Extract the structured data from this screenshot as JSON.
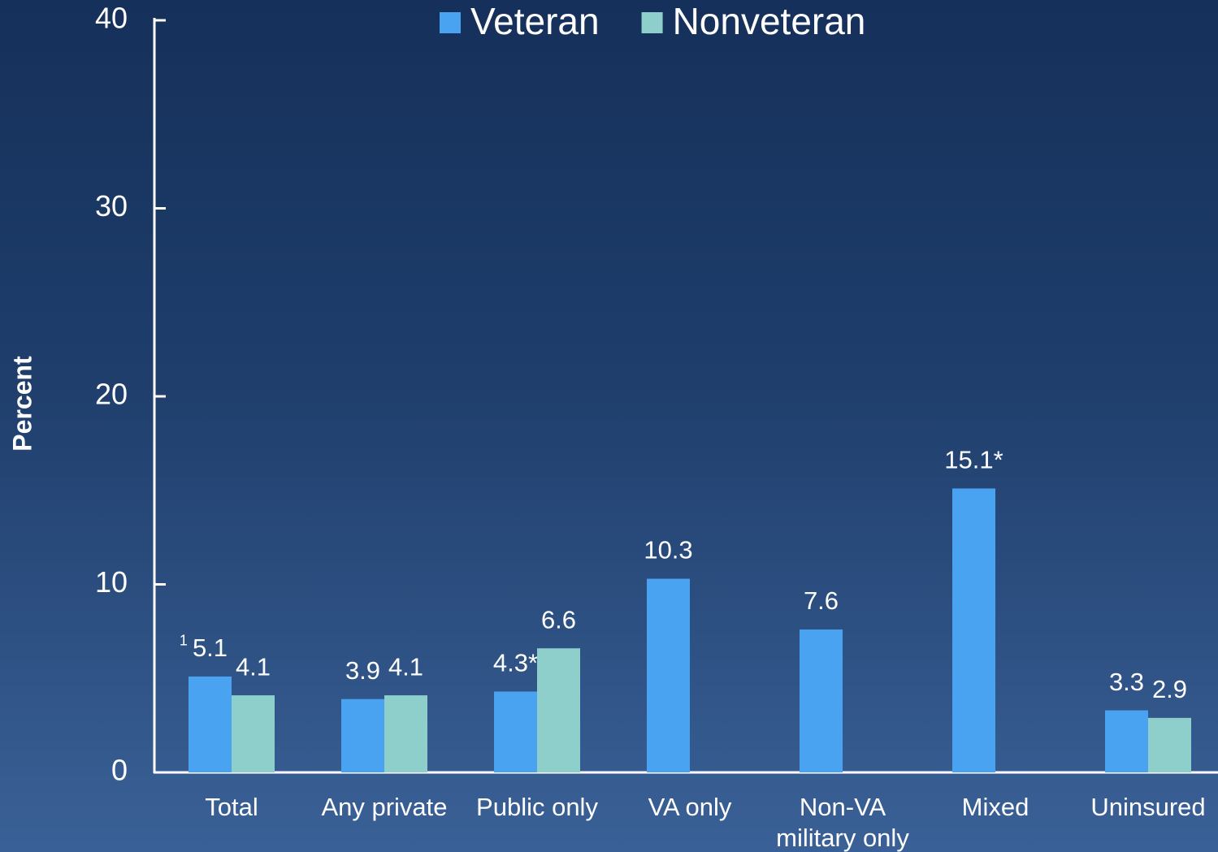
{
  "chart_data": {
    "type": "bar",
    "categories": [
      "Total",
      "Any private",
      "Public only",
      "VA only",
      "Non-VA military only",
      "Mixed",
      "Uninsured"
    ],
    "series": [
      {
        "name": "Veteran",
        "color": "#4aa3f0",
        "values": [
          5.1,
          3.9,
          4.3,
          10.3,
          7.6,
          15.1,
          3.3
        ],
        "value_labels": [
          "5.1",
          "3.9",
          "4.3*",
          "10.3",
          "7.6",
          "15.1*",
          "3.3"
        ]
      },
      {
        "name": "Nonveteran",
        "color": "#8ecfcc",
        "values": [
          4.1,
          4.1,
          6.6,
          null,
          null,
          null,
          2.9
        ]
      }
    ],
    "footnote_marker": "1",
    "y_label": "Percent",
    "ylim": [
      0,
      40
    ],
    "yticks": [
      0,
      10,
      20,
      30,
      40
    ]
  }
}
